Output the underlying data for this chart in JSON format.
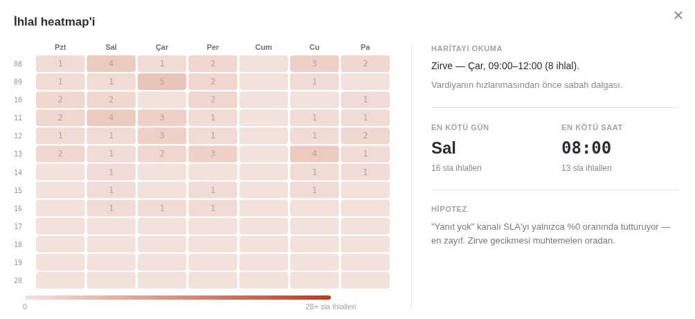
{
  "chart_data": [
    {
      "type": "heatmap",
      "title": "İhlal heatmap'i",
      "categories": [
        "Pzt",
        "Sal",
        "Çar",
        "Per",
        "Cum",
        "Cu",
        "Pa"
      ],
      "y_categories": [
        "08",
        "09",
        "10",
        "11",
        "12",
        "13",
        "14",
        "15",
        "16",
        "17",
        "18",
        "19",
        "20"
      ],
      "cells": [
        [
          1,
          4,
          1,
          2,
          0,
          3,
          2
        ],
        [
          1,
          1,
          5,
          2,
          0,
          1,
          0
        ],
        [
          2,
          2,
          0,
          2,
          0,
          0,
          1
        ],
        [
          2,
          4,
          3,
          1,
          0,
          1,
          1
        ],
        [
          1,
          1,
          3,
          1,
          0,
          1,
          2
        ],
        [
          2,
          1,
          2,
          3,
          0,
          4,
          1
        ],
        [
          0,
          1,
          0,
          0,
          0,
          1,
          1
        ],
        [
          0,
          1,
          0,
          1,
          0,
          1,
          0
        ],
        [
          0,
          1,
          1,
          1,
          0,
          0,
          0
        ],
        [
          0,
          0,
          0,
          0,
          0,
          0,
          0
        ],
        [
          0,
          0,
          0,
          0,
          0,
          0,
          0
        ],
        [
          0,
          0,
          0,
          0,
          0,
          0,
          0
        ],
        [
          0,
          0,
          0,
          0,
          0,
          0,
          0
        ]
      ],
      "cell_labels": [
        [
          "1",
          "4",
          "1",
          "2",
          null,
          "3",
          "2"
        ],
        [
          "1",
          "1",
          "5",
          "2",
          null,
          "1",
          null
        ],
        [
          "2",
          "2",
          null,
          "2",
          null,
          null,
          "1"
        ],
        [
          "2",
          "4",
          "3",
          "1",
          null,
          "1",
          "1"
        ],
        [
          "1",
          "1",
          "3",
          "1",
          null,
          "1",
          "2"
        ],
        [
          "2",
          "1",
          "2",
          "3",
          null,
          "4",
          "1"
        ],
        [
          null,
          "1",
          null,
          null,
          null,
          "1",
          "1"
        ],
        [
          null,
          "1",
          null,
          "1",
          null,
          "1",
          null
        ],
        [
          null,
          "1",
          "1",
          "1",
          null,
          null,
          null
        ],
        [
          null,
          null,
          null,
          null,
          null,
          null,
          null
        ],
        [
          null,
          null,
          null,
          null,
          null,
          null,
          null
        ],
        [
          null,
          null,
          null,
          null,
          null,
          null,
          null
        ],
        [
          null,
          null,
          null,
          null,
          null,
          null,
          null
        ]
      ],
      "clim": [
        0,
        28
      ],
      "cticks": [
        0,
        {
          "value": 28,
          "label": "28+ sla ihlalleri"
        }
      ]
    },
    {
      "type": "other",
      "annotations": [
        "HARİTAYI OKUMA",
        "Zirve — Çar, 09:00–12:00 (8 ihlal).",
        "Vardiyanın hızlanmasından önce sabah dalgası.",
        "EN KÖTÜ GÜN",
        "Sal",
        "16 sla ihlalleri",
        "EN KÖTÜ SAAT",
        "08:00",
        "13 sla ihlalleri",
        "HİPOTEZ",
        "\"Yanıt yok\" kanalı SLA'yı yalnızca %0 oranında tutturuyor — en zayıf. Zirve gecikmesi muhtemelen oradan."
      ]
    }
  ]
}
